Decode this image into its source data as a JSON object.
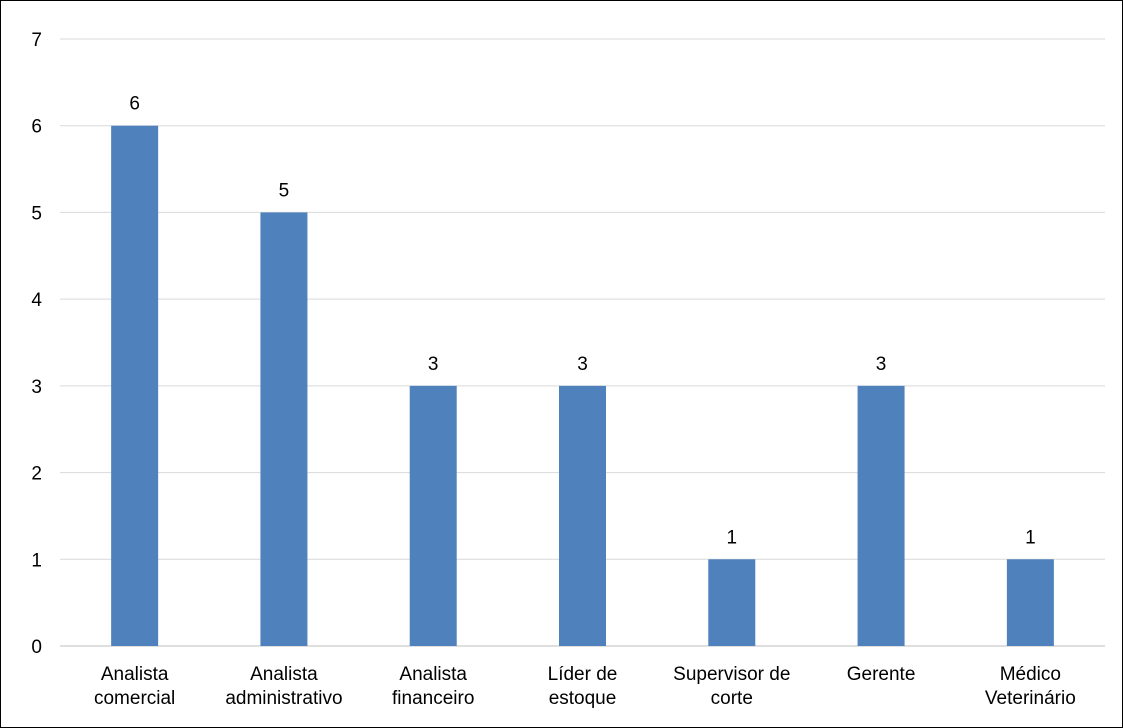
{
  "chart_data": {
    "type": "bar",
    "categories": [
      [
        "Analista",
        "comercial"
      ],
      [
        "Analista",
        "administrativo"
      ],
      [
        "Analista",
        "financeiro"
      ],
      [
        "Líder de",
        "estoque"
      ],
      [
        "Supervisor de",
        "corte"
      ],
      [
        "Gerente"
      ],
      [
        "Médico",
        "Veterinário"
      ]
    ],
    "values": [
      6,
      5,
      3,
      3,
      1,
      3,
      1
    ],
    "ylim": [
      0,
      7
    ],
    "yticks": [
      0,
      1,
      2,
      3,
      4,
      5,
      6,
      7
    ],
    "grid": true,
    "legend": "none",
    "colors": {
      "bar": "#4F81BD",
      "grid": "#D9D9D9",
      "text": "#000000"
    }
  }
}
